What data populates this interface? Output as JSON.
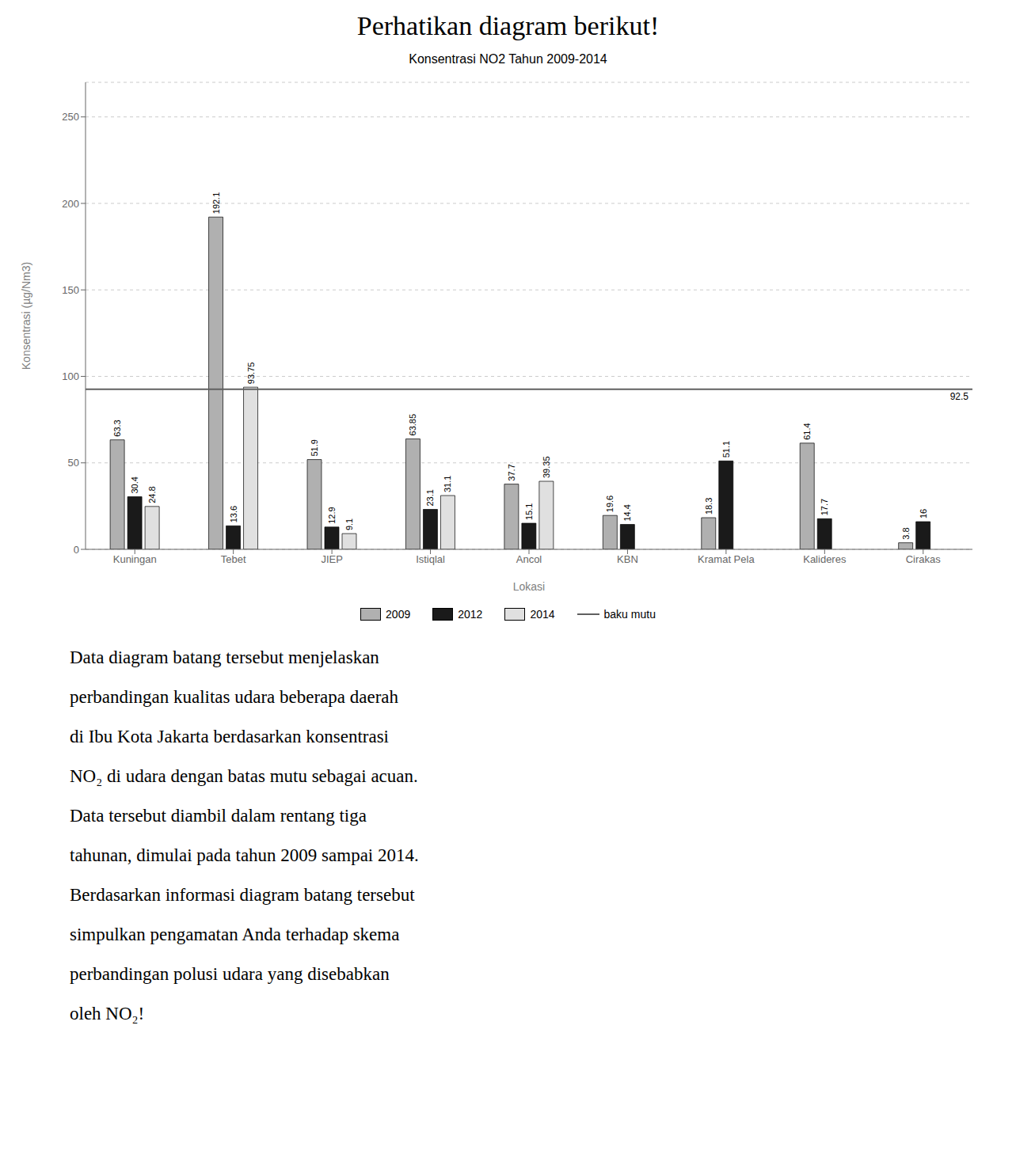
{
  "heading": "Perhatikan diagram berikut!",
  "paragraph_lines": [
    "Data diagram batang tersebut menjelaskan",
    "perbandingan kualitas udara beberapa daerah",
    "di Ibu Kota Jakarta berdasarkan konsentrasi",
    "NO₂ di udara dengan batas mutu sebagai acuan.",
    "Data tersebut diambil dalam rentang tiga",
    "tahunan, dimulai pada tahun 2009 sampai 2014.",
    "Berdasarkan informasi diagram batang tersebut",
    "simpulkan pengamatan Anda terhadap skema",
    "perbandingan polusi udara yang disebabkan",
    "oleh NO₂!"
  ],
  "chart_data": {
    "type": "bar",
    "title": "Konsentrasi NO2 Tahun 2009-2014",
    "xlabel": "Lokasi",
    "ylabel": "Konsentrasi (µg/Nm3)",
    "categories": [
      "Kuningan",
      "Tebet",
      "JIEP",
      "Istiqlal",
      "Ancol",
      "KBN",
      "Kramat Pela",
      "Kalideres",
      "Cirakas"
    ],
    "series": [
      {
        "name": "2009",
        "color": "#b0b0b0",
        "values": [
          63.3,
          192.1,
          51.9,
          63.85,
          37.7,
          19.6,
          18.3,
          61.4,
          3.8
        ]
      },
      {
        "name": "2012",
        "color": "#1a1a1a",
        "values": [
          30.4,
          13.6,
          12.9,
          23.1,
          15.1,
          14.4,
          51.1,
          17.7,
          16.0
        ]
      },
      {
        "name": "2014",
        "color": "#e0e0e0",
        "values": [
          24.8,
          93.75,
          9.1,
          31.1,
          39.35,
          0,
          0,
          0,
          0
        ]
      }
    ],
    "reference_line": {
      "name": "baku mutu",
      "value": 92.5,
      "color": "#606060"
    },
    "ylim": [
      0,
      270
    ],
    "yticks": [
      0,
      50,
      100,
      150,
      200,
      250
    ],
    "grid": true,
    "data_labels": true,
    "legend": "bottom"
  }
}
